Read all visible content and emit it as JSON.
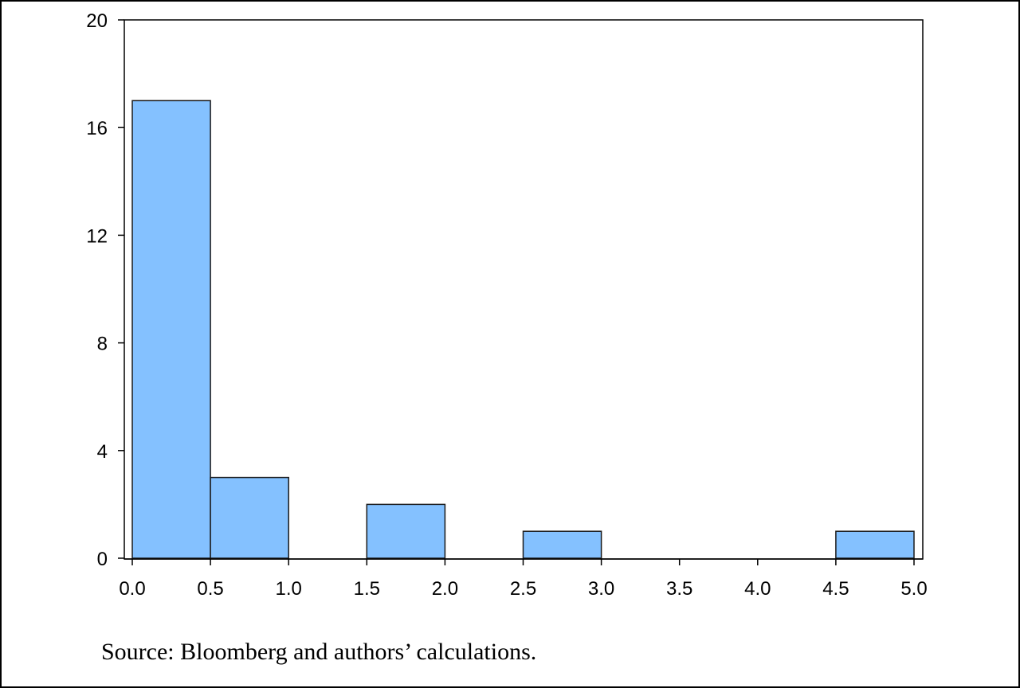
{
  "chart_data": {
    "type": "bar",
    "bins": [
      {
        "x0": 0.0,
        "x1": 0.5,
        "count": 17
      },
      {
        "x0": 0.5,
        "x1": 1.0,
        "count": 3
      },
      {
        "x0": 1.0,
        "x1": 1.5,
        "count": 0
      },
      {
        "x0": 1.5,
        "x1": 2.0,
        "count": 2
      },
      {
        "x0": 2.0,
        "x1": 2.5,
        "count": 0
      },
      {
        "x0": 2.5,
        "x1": 3.0,
        "count": 1
      },
      {
        "x0": 3.0,
        "x1": 3.5,
        "count": 0
      },
      {
        "x0": 3.5,
        "x1": 4.0,
        "count": 0
      },
      {
        "x0": 4.0,
        "x1": 4.5,
        "count": 0
      },
      {
        "x0": 4.5,
        "x1": 5.0,
        "count": 1
      }
    ],
    "xlim": [
      0.0,
      5.0
    ],
    "ylim": [
      0,
      20
    ],
    "x_ticks": [
      "0.0",
      "0.5",
      "1.0",
      "1.5",
      "2.0",
      "2.5",
      "3.0",
      "3.5",
      "4.0",
      "4.5",
      "5.0"
    ],
    "y_ticks": [
      "0",
      "4",
      "8",
      "12",
      "16",
      "20"
    ],
    "title": "",
    "xlabel": "",
    "ylabel": "",
    "grid": false,
    "bar_color": "#84C1FF",
    "bar_edge_color": "#1a1a1a"
  },
  "source_note": "Source: Bloomberg and authors’ calculations."
}
